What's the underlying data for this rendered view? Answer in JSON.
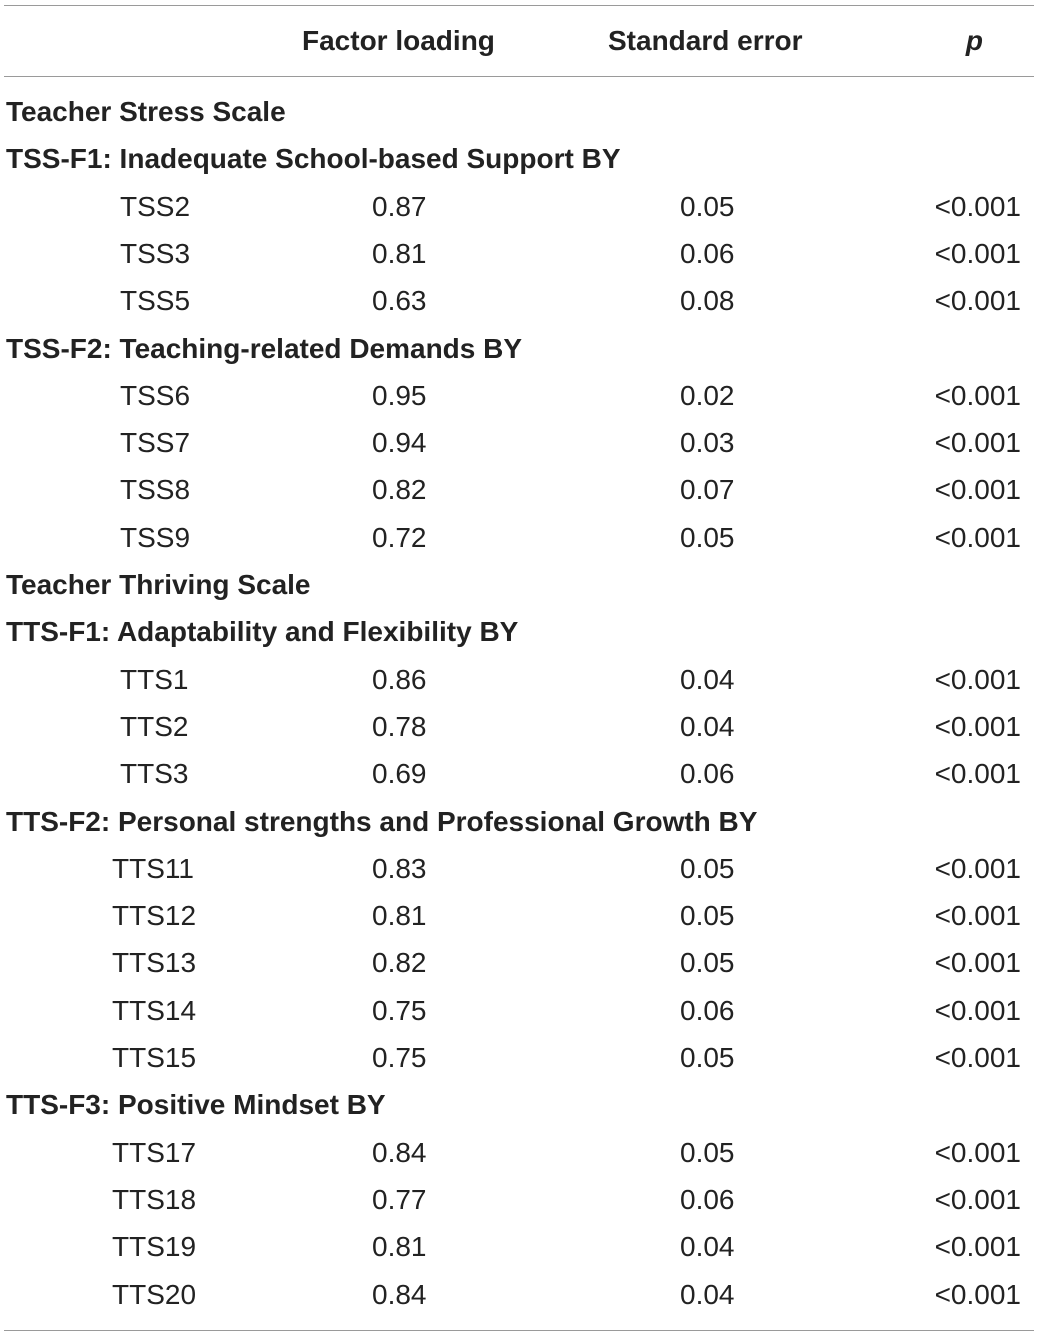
{
  "header": {
    "factor_loading": "Factor loading",
    "standard_error": "Standard error",
    "p": "p"
  },
  "sections": [
    {
      "label": "Teacher Stress Scale",
      "kind": "scale"
    },
    {
      "label": "TSS-F1: Inadequate School-based Support BY",
      "kind": "factor",
      "rows": [
        {
          "item": "TSS2",
          "loading": "0.87",
          "se": "0.05",
          "p": "<0.001"
        },
        {
          "item": "TSS3",
          "loading": "0.81",
          "se": "0.06",
          "p": "<0.001"
        },
        {
          "item": "TSS5",
          "loading": "0.63",
          "se": "0.08",
          "p": "<0.001"
        }
      ]
    },
    {
      "label": "TSS-F2: Teaching-related Demands BY",
      "kind": "factor",
      "rows": [
        {
          "item": "TSS6",
          "loading": "0.95",
          "se": "0.02",
          "p": "<0.001"
        },
        {
          "item": "TSS7",
          "loading": "0.94",
          "se": "0.03",
          "p": "<0.001"
        },
        {
          "item": "TSS8",
          "loading": "0.82",
          "se": "0.07",
          "p": "<0.001"
        },
        {
          "item": "TSS9",
          "loading": "0.72",
          "se": "0.05",
          "p": "<0.001"
        }
      ]
    },
    {
      "label": "Teacher Thriving Scale",
      "kind": "scale"
    },
    {
      "label": "TTS-F1: Adaptability and Flexibility BY",
      "kind": "factor",
      "rows": [
        {
          "item": "TTS1",
          "loading": "0.86",
          "se": "0.04",
          "p": "<0.001"
        },
        {
          "item": "TTS2",
          "loading": "0.78",
          "se": "0.04",
          "p": "<0.001"
        },
        {
          "item": "TTS3",
          "loading": "0.69",
          "se": "0.06",
          "p": "<0.001"
        }
      ]
    },
    {
      "label": "TTS-F2: Personal strengths and Professional Growth BY",
      "kind": "factor",
      "rows": [
        {
          "item": "TTS11",
          "loading": "0.83",
          "se": "0.05",
          "p": "<0.001"
        },
        {
          "item": "TTS12",
          "loading": "0.81",
          "se": "0.05",
          "p": "<0.001"
        },
        {
          "item": "TTS13",
          "loading": "0.82",
          "se": "0.05",
          "p": "<0.001"
        },
        {
          "item": "TTS14",
          "loading": "0.75",
          "se": "0.06",
          "p": "<0.001"
        },
        {
          "item": "TTS15",
          "loading": "0.75",
          "se": "0.05",
          "p": "<0.001"
        }
      ]
    },
    {
      "label": "TTS-F3: Positive Mindset BY",
      "kind": "factor",
      "rows": [
        {
          "item": "TTS17",
          "loading": "0.84",
          "se": "0.05",
          "p": "<0.001"
        },
        {
          "item": "TTS18",
          "loading": "0.77",
          "se": "0.06",
          "p": "<0.001"
        },
        {
          "item": "TTS19",
          "loading": "0.81",
          "se": "0.04",
          "p": "<0.001"
        },
        {
          "item": "TTS20",
          "loading": "0.84",
          "se": "0.04",
          "p": "<0.001"
        }
      ]
    }
  ]
}
